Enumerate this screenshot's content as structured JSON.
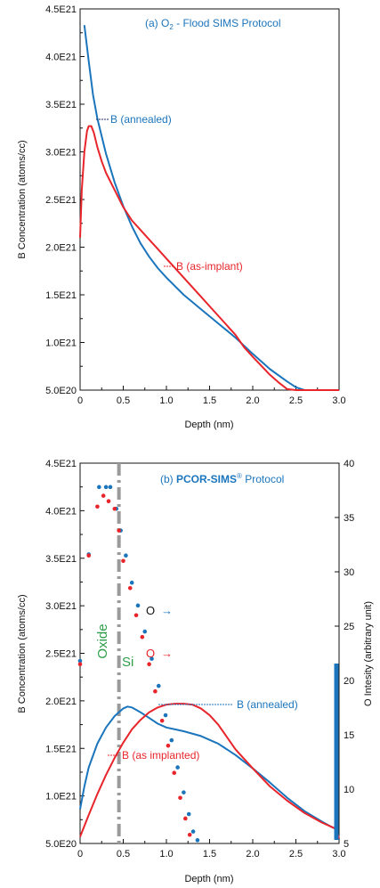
{
  "colors": {
    "blue": "#1b75bc",
    "red": "#e8252b",
    "black": "#111111",
    "green": "#2e9e4a",
    "gray": "#9a9a9a",
    "leader": "#1a2a6c"
  },
  "chart_data": [
    {
      "type": "line",
      "panel": "a",
      "title_prefix": "(a) O",
      "title_sub": "2",
      "title_suffix": " - Flood SIMS Protocol",
      "xlabel": "Depth (nm)",
      "ylabel": "B Concentration (atoms/cc)",
      "xlim": [
        0,
        3.0
      ],
      "ylim": [
        5e+20,
        4.5e+21
      ],
      "xticks": [
        "0",
        "0.5",
        "1.0",
        "1.5",
        "2.0",
        "2.5",
        "3.0"
      ],
      "yticks": [
        "5.0E20",
        "1.0E21",
        "1.5E21",
        "2.0E21",
        "2.5E21",
        "3.0E21",
        "3.5E21",
        "4.0E21",
        "4.5E21"
      ],
      "grid": false,
      "series": [
        {
          "name": "B (annealed)",
          "color": "#1b75bc",
          "x": [
            0.05,
            0.1,
            0.15,
            0.2,
            0.3,
            0.4,
            0.5,
            0.6,
            0.7,
            0.8,
            0.9,
            1.0,
            1.2,
            1.4,
            1.6,
            1.8,
            2.0,
            2.2,
            2.4,
            2.5,
            2.6,
            2.8,
            3.0
          ],
          "y": [
            4.33e+21,
            3.95e+21,
            3.6e+21,
            3.35e+21,
            2.98e+21,
            2.68e+21,
            2.43e+21,
            2.22e+21,
            2.04e+21,
            1.9e+21,
            1.78e+21,
            1.68e+21,
            1.5e+21,
            1.35e+21,
            1.2e+21,
            1.05e+21,
            8.8e+20,
            7.2e+20,
            5.9e+20,
            5.3e+20,
            5e+20,
            5e+20,
            5e+20
          ]
        },
        {
          "name": "B (as-implant)",
          "color": "#e8252b",
          "x": [
            0.0,
            0.02,
            0.05,
            0.08,
            0.1,
            0.13,
            0.16,
            0.2,
            0.25,
            0.3,
            0.4,
            0.5,
            0.6,
            0.7,
            0.8,
            0.9,
            1.0,
            1.2,
            1.4,
            1.6,
            1.8,
            1.9,
            2.0,
            2.2,
            2.3,
            2.4,
            2.5,
            2.7,
            3.0
          ],
          "y": [
            2.1e+21,
            2.6e+21,
            3e+21,
            3.22e+21,
            3.27e+21,
            3.27e+21,
            3.2e+21,
            3.05e+21,
            2.9e+21,
            2.78e+21,
            2.6e+21,
            2.42e+21,
            2.28e+21,
            2.18e+21,
            2.08e+21,
            1.98e+21,
            1.88e+21,
            1.68e+21,
            1.48e+21,
            1.28e+21,
            1.08e+21,
            9.5e+20,
            8.5e+20,
            6.6e+20,
            5.8e+20,
            5.1e+20,
            5e+20,
            5e+20,
            5e+20
          ]
        }
      ],
      "annotations": [
        {
          "text": "B (annealed)",
          "color": "#1b75bc",
          "series": 0
        },
        {
          "text": "B (as-implant)",
          "color": "#e8252b",
          "series": 1
        }
      ]
    },
    {
      "type": "line",
      "panel": "b",
      "title_prefix": "(b) ",
      "title_bold": "PCOR-SIMS",
      "title_sup": "®",
      "title_suffix": " Protocol",
      "xlabel": "Depth (nm)",
      "ylabel": "B Concentration (atoms/cc)",
      "y2label": "O Intesity (arbitrary unit)",
      "xlim": [
        0,
        3.0
      ],
      "ylim": [
        5e+20,
        4.5e+21
      ],
      "y2lim": [
        5,
        40
      ],
      "xticks": [
        "0",
        "0.5",
        "1.0",
        "1.5",
        "2.0",
        "2.5",
        "3.0"
      ],
      "yticks": [
        "5.0E20",
        "1.0E21",
        "1.5E21",
        "2.0E21",
        "2.5E21",
        "3.0E21",
        "3.5E21",
        "4.0E21",
        "4.5E21"
      ],
      "y2ticks": [
        "5",
        "10",
        "15",
        "20",
        "25",
        "30",
        "35",
        "40"
      ],
      "grid": false,
      "interface_x": 0.45,
      "labels": {
        "oxide": "Oxide",
        "si": "Si",
        "o_black": "O",
        "o_red": "O",
        "arrow": "→"
      },
      "series": [
        {
          "name": "B (annealed)",
          "color": "#1b75bc",
          "x": [
            0.0,
            0.05,
            0.1,
            0.2,
            0.3,
            0.4,
            0.5,
            0.55,
            0.6,
            0.7,
            0.8,
            0.9,
            1.0,
            1.1,
            1.2,
            1.4,
            1.6,
            1.8,
            2.0,
            2.2,
            2.4,
            2.6,
            2.8,
            2.9,
            2.97,
            3.0
          ],
          "y": [
            8.6e+20,
            1.1e+21,
            1.3e+21,
            1.55e+21,
            1.72e+21,
            1.84e+21,
            1.92e+21,
            1.94e+21,
            1.93e+21,
            1.88e+21,
            1.82e+21,
            1.76e+21,
            1.72e+21,
            1.7e+21,
            1.68e+21,
            1.63e+21,
            1.55e+21,
            1.43e+21,
            1.29e+21,
            1.14e+21,
            9.8e+20,
            8.4e+20,
            7.3e+20,
            6.8e+20,
            6.5e+20,
            5.4e+20
          ]
        },
        {
          "name": "B (as implanted)",
          "color": "#e8252b",
          "x": [
            0.0,
            0.1,
            0.2,
            0.3,
            0.4,
            0.5,
            0.6,
            0.7,
            0.8,
            0.9,
            1.0,
            1.1,
            1.2,
            1.3,
            1.4,
            1.5,
            1.6,
            1.7,
            1.8,
            2.0,
            2.2,
            2.4,
            2.6,
            2.8,
            2.9,
            2.97,
            3.0
          ],
          "y": [
            5.7e+20,
            8e+20,
            1.02e+21,
            1.22e+21,
            1.4e+21,
            1.56e+21,
            1.7e+21,
            1.8e+21,
            1.88e+21,
            1.93e+21,
            1.96e+21,
            1.97e+21,
            1.97e+21,
            1.96e+21,
            1.92e+21,
            1.85e+21,
            1.75e+21,
            1.62e+21,
            1.49e+21,
            1.29e+21,
            1.1e+21,
            9.5e+20,
            8.2e+20,
            7.2e+20,
            6.8e+20,
            6.5e+20,
            5.5e+20
          ]
        }
      ],
      "scatter_series": [
        {
          "name": "O (annealed)",
          "color": "#1b75bc",
          "axis": "y2",
          "x": [
            0.0,
            0.1,
            0.22,
            0.3,
            0.35,
            0.42,
            0.47,
            0.53,
            0.6,
            0.67,
            0.75,
            0.83,
            0.91,
            0.99,
            1.06,
            1.13,
            1.2,
            1.26,
            1.31,
            1.36
          ],
          "y": [
            21.8,
            31.6,
            37.8,
            37.8,
            37.8,
            35.8,
            33.8,
            31.5,
            29.0,
            26.9,
            24.5,
            22.0,
            19.5,
            16.8,
            14.5,
            12.0,
            9.7,
            7.7,
            6.1,
            5.3
          ]
        },
        {
          "name": "O (as implanted)",
          "color": "#e8252b",
          "axis": "y2",
          "x": [
            0.0,
            0.1,
            0.2,
            0.27,
            0.33,
            0.4,
            0.45,
            0.5,
            0.58,
            0.65,
            0.72,
            0.8,
            0.87,
            0.95,
            1.02,
            1.09,
            1.16,
            1.22,
            1.27
          ],
          "y": [
            21.5,
            31.5,
            36.0,
            37.0,
            36.5,
            35.8,
            33.8,
            31.0,
            28.5,
            26.0,
            24.0,
            21.5,
            19.0,
            16.3,
            14.0,
            11.5,
            9.2,
            7.3,
            5.8
          ]
        }
      ],
      "annotations": [
        {
          "text": "B (annealed)",
          "color": "#1b75bc",
          "series": 0
        },
        {
          "text": "B (as implanted)",
          "color": "#e8252b",
          "series": 1
        }
      ]
    }
  ]
}
